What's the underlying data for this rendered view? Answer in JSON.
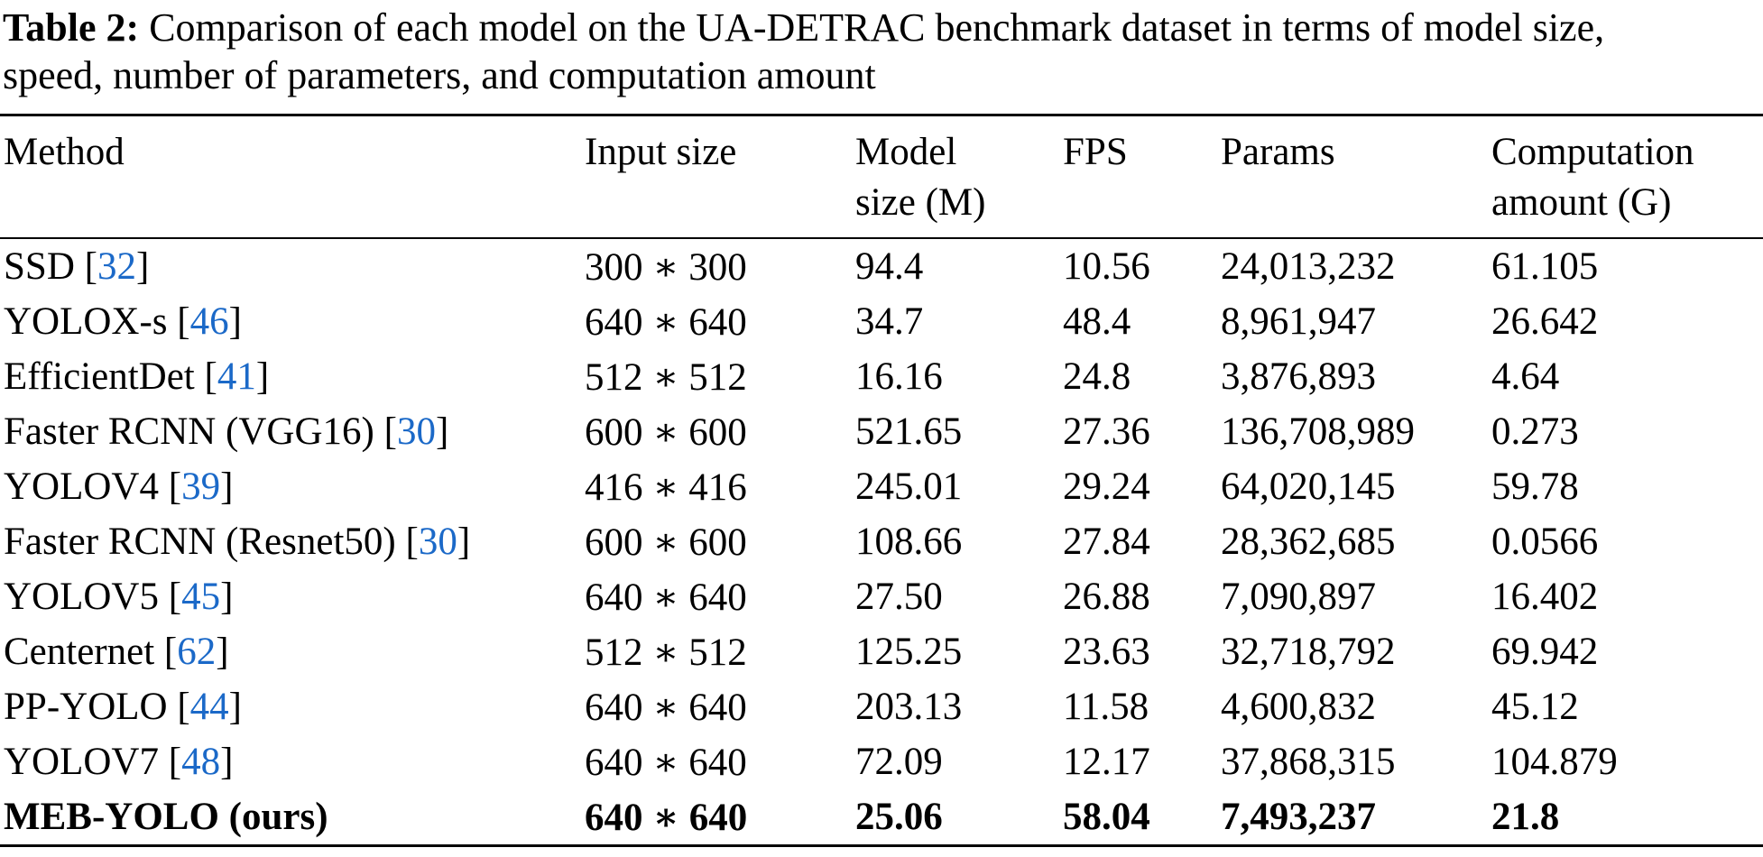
{
  "colors": {
    "citation_blue": "#1b69c8",
    "text": "#000000",
    "background": "#ffffff"
  },
  "caption": {
    "label": "Table 2:",
    "line1": " Comparison of each model on the UA-DETRAC benchmark dataset in terms of model size,",
    "line2": "speed, number of parameters, and computation amount"
  },
  "header": {
    "columns": [
      {
        "line1": "Method",
        "line2": ""
      },
      {
        "line1": "Input size",
        "line2": ""
      },
      {
        "line1": "Model",
        "line2": "size (M)"
      },
      {
        "line1": "FPS",
        "line2": ""
      },
      {
        "line1": "Params",
        "line2": ""
      },
      {
        "line1": "Computation",
        "line2": "amount (G)"
      }
    ]
  },
  "rows": [
    {
      "method": "SSD ",
      "bl": "[",
      "cite": "32",
      "br": "]",
      "input": "300 ∗ 300",
      "model_size": "94.4",
      "fps": "10.56",
      "params": "24,013,232",
      "computation": "61.105"
    },
    {
      "method": "YOLOX-s ",
      "bl": "[",
      "cite": "46",
      "br": "]",
      "input": "640 ∗ 640",
      "model_size": "34.7",
      "fps": "48.4",
      "params": "8,961,947",
      "computation": "26.642"
    },
    {
      "method": "EfficientDet ",
      "bl": "[",
      "cite": "41",
      "br": "]",
      "input": "512 ∗ 512",
      "model_size": "16.16",
      "fps": "24.8",
      "params": "3,876,893",
      "computation": "4.64"
    },
    {
      "method": "Faster RCNN (VGG16) ",
      "bl": "[",
      "cite": "30",
      "br": "]",
      "input": "600 ∗ 600",
      "model_size": "521.65",
      "fps": "27.36",
      "params": "136,708,989",
      "computation": "0.273"
    },
    {
      "method": "YOLOV4 ",
      "bl": "[",
      "cite": "39",
      "br": "]",
      "input": "416 ∗ 416",
      "model_size": "245.01",
      "fps": "29.24",
      "params": "64,020,145",
      "computation": "59.78"
    },
    {
      "method": "Faster RCNN (Resnet50) ",
      "bl": "[",
      "cite": "30",
      "br": "]",
      "input": "600 ∗ 600",
      "model_size": "108.66",
      "fps": "27.84",
      "params": "28,362,685",
      "computation": "0.0566"
    },
    {
      "method": "YOLOV5 ",
      "bl": "[",
      "cite": "45",
      "br": "]",
      "input": "640 ∗ 640",
      "model_size": "27.50",
      "fps": "26.88",
      "params": "7,090,897",
      "computation": "16.402"
    },
    {
      "method": "Centernet ",
      "bl": "[",
      "cite": "62",
      "br": "]",
      "input": "512 ∗ 512",
      "model_size": "125.25",
      "fps": "23.63",
      "params": "32,718,792",
      "computation": "69.942"
    },
    {
      "method": "PP-YOLO ",
      "bl": "[",
      "cite": "44",
      "br": "]",
      "input": "640 ∗ 640",
      "model_size": "203.13",
      "fps": "11.58",
      "params": "4,600,832",
      "computation": "45.12"
    },
    {
      "method": "YOLOV7 ",
      "bl": "[",
      "cite": "48",
      "br": "]",
      "input": "640 ∗ 640",
      "model_size": "72.09",
      "fps": "12.17",
      "params": "37,868,315",
      "computation": "104.879"
    },
    {
      "method": "MEB-YOLO (ours)",
      "bl": "",
      "cite": "",
      "br": "",
      "input": "640 ∗ 640",
      "model_size": "25.06",
      "fps": "58.04",
      "params": "7,493,237",
      "computation": "21.8"
    }
  ]
}
